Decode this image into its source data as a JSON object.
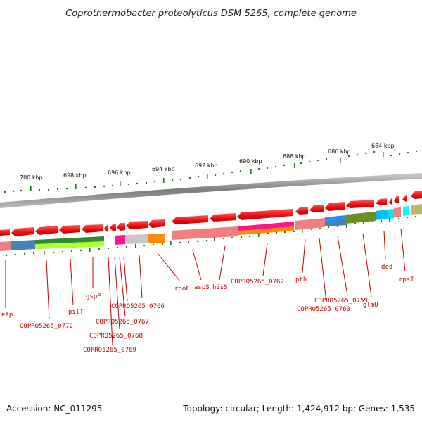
{
  "title": "Coprothermobacter proteolyticus DSM 5265, complete genome",
  "footer": {
    "accession": "Accession: NC_011295",
    "stats": "Topology: circular; Length: 1,424,912 bp; Genes: 1,535"
  },
  "ticks": [
    {
      "kbp": 700,
      "label": "700 kbp"
    },
    {
      "kbp": 698,
      "label": "698 kbp"
    },
    {
      "kbp": 696,
      "label": "696 kbp"
    },
    {
      "kbp": 694,
      "label": "694 kbp"
    },
    {
      "kbp": 692,
      "label": "692 kbp"
    },
    {
      "kbp": 690,
      "label": "690 kbp"
    },
    {
      "kbp": 688,
      "label": "688 kbp"
    },
    {
      "kbp": 686,
      "label": "686 kbp"
    },
    {
      "kbp": 684,
      "label": "684 kbp"
    }
  ],
  "genes": [
    {
      "label": "efp"
    },
    {
      "label": "COPRO5265_0772"
    },
    {
      "label": "pilT"
    },
    {
      "label": "gspE"
    },
    {
      "label": "COPRO5265_0769"
    },
    {
      "label": "COPRO5265_0768"
    },
    {
      "label": "COPRO5265_0767"
    },
    {
      "label": "COPRO5265_0766"
    },
    {
      "label": "rpoF"
    },
    {
      "label": "aspS"
    },
    {
      "label": "hisS"
    },
    {
      "label": "COPRO5265_0762"
    },
    {
      "label": "pth"
    },
    {
      "label": "COPRO5265_0760"
    },
    {
      "label": "COPRO5265_0759"
    },
    {
      "label": "glmU"
    },
    {
      "label": "dcd"
    },
    {
      "label": "rpsT"
    }
  ],
  "colors": {
    "arrow": "#ee1111",
    "ticks": "#1a7a1a",
    "label": "#c00000",
    "ring": "#8a8a8a"
  }
}
